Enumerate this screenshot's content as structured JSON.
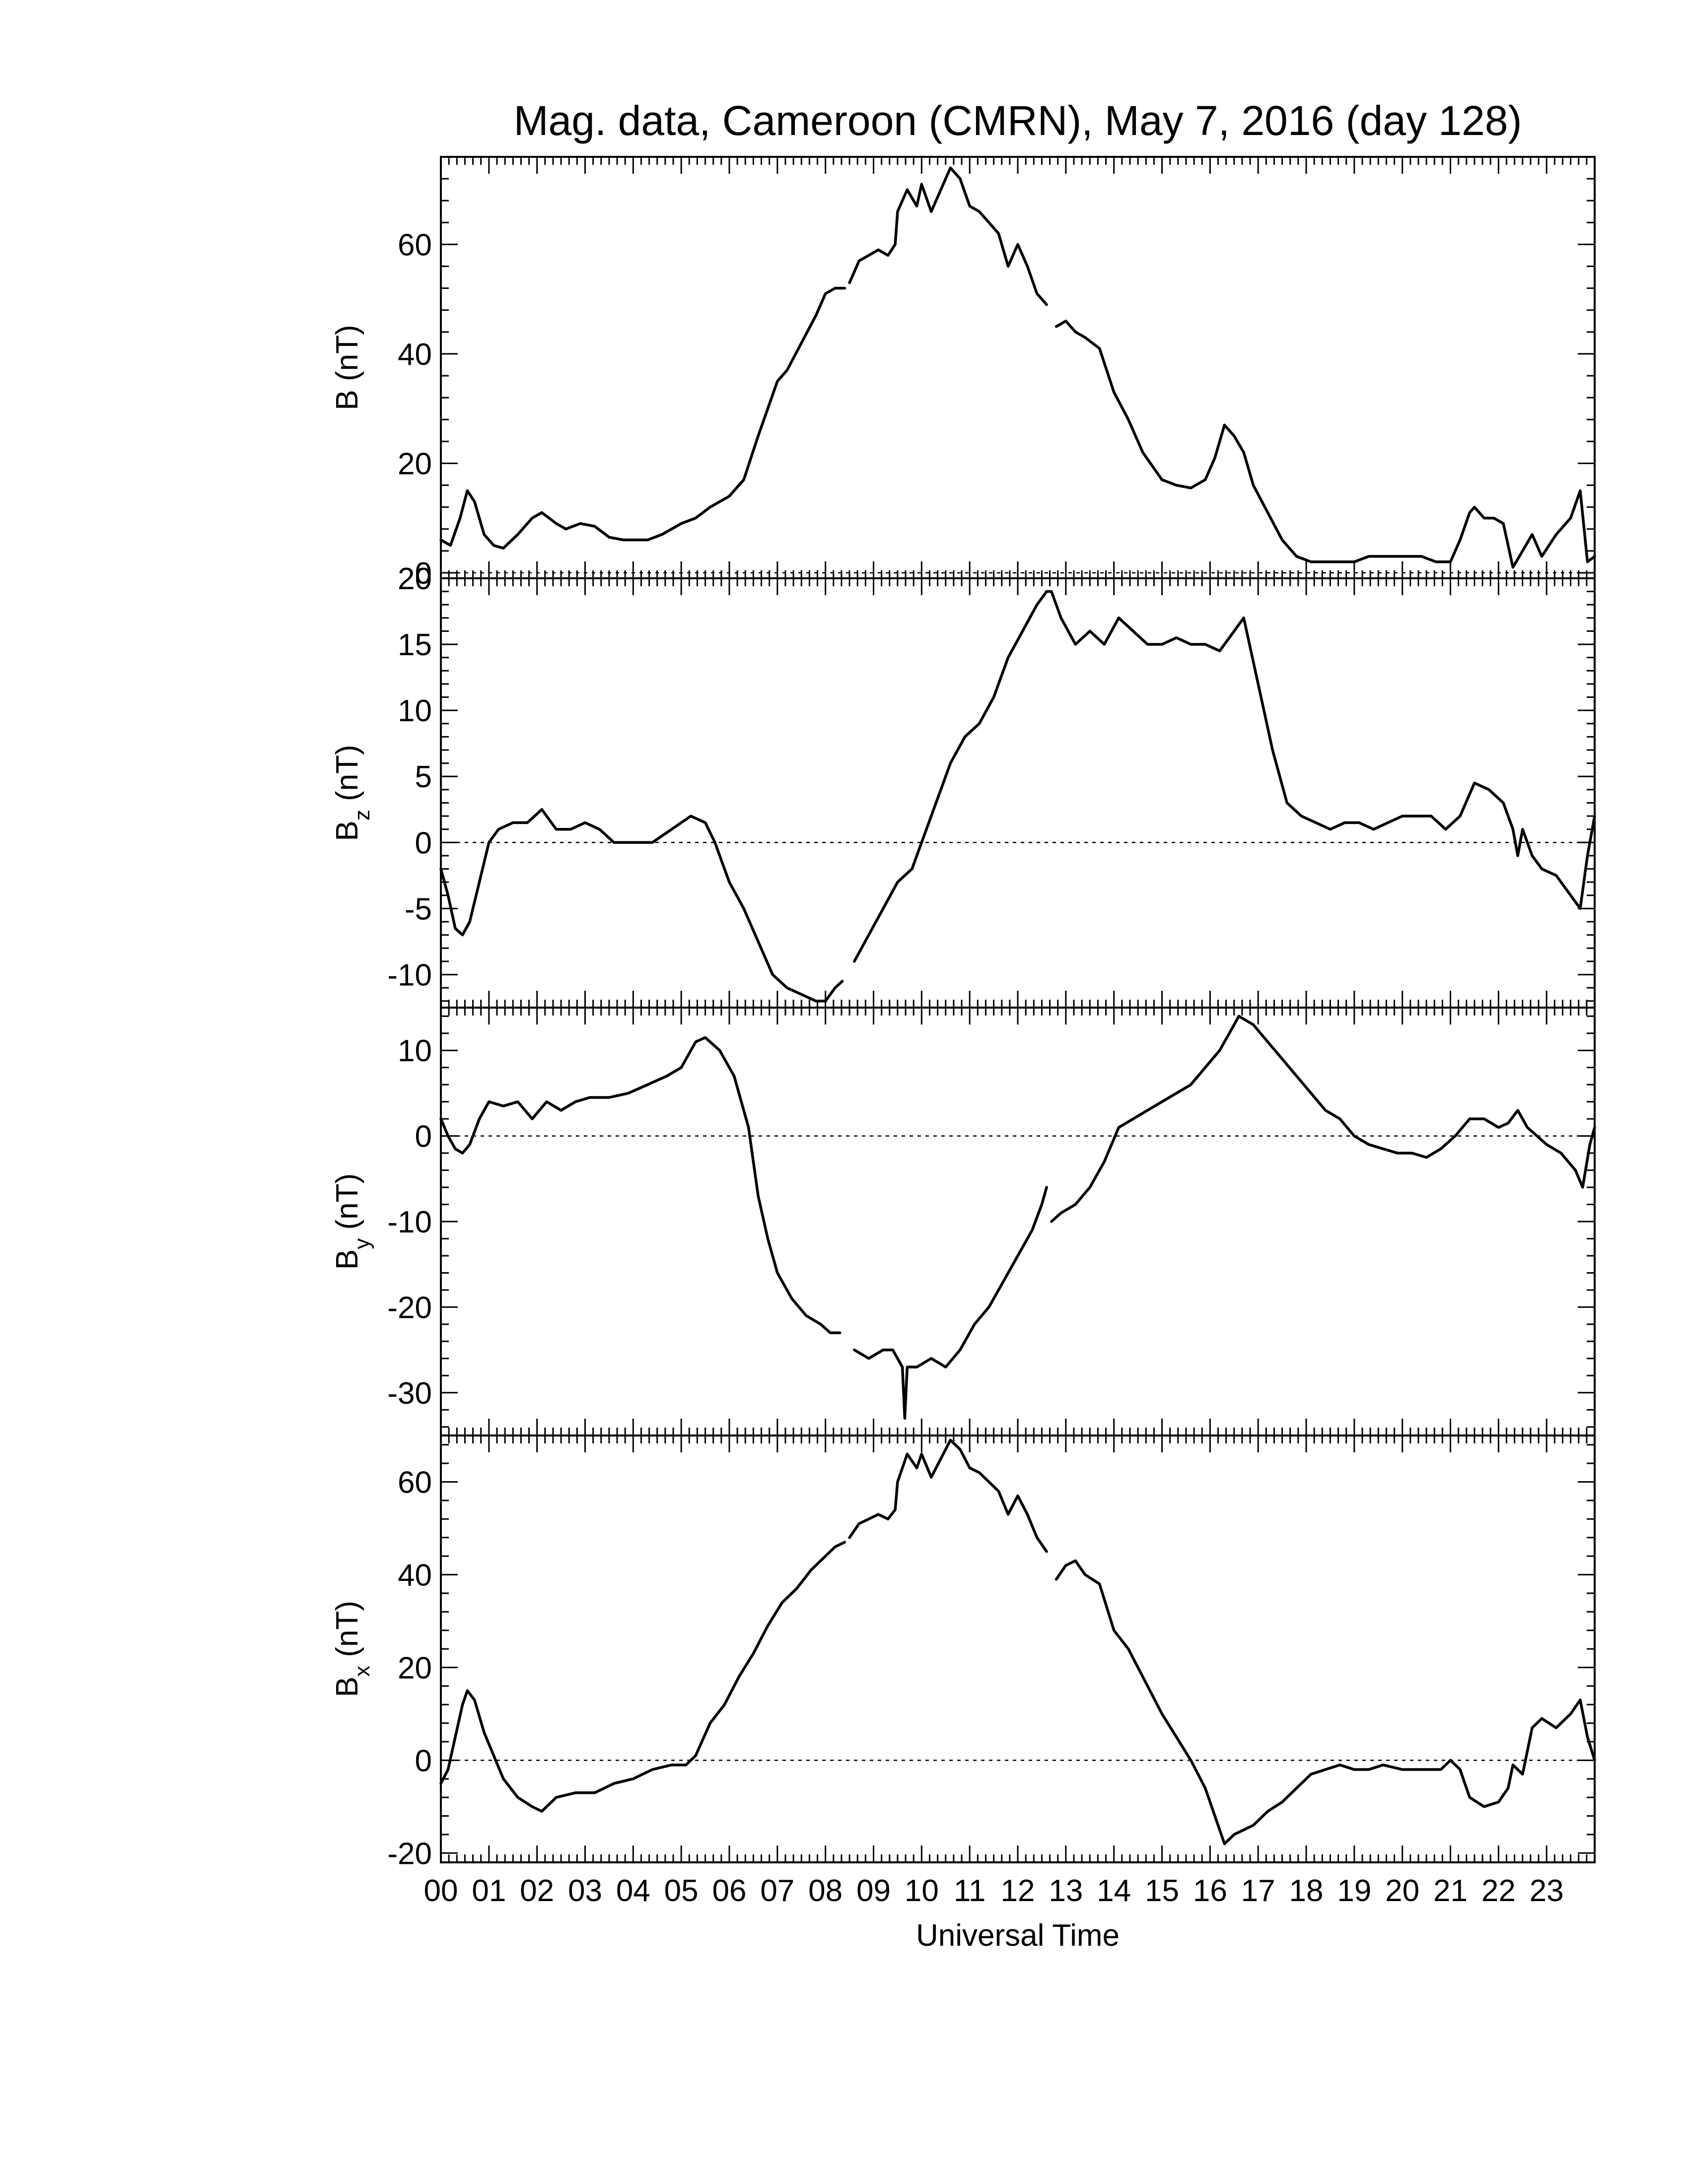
{
  "figure": {
    "title": "Mag. data, Cameroon (CMRN), May 7, 2016 (day 128)",
    "xlabel": "Universal Time"
  },
  "chart_data": [
    {
      "type": "line",
      "ylabel": {
        "main": "B",
        "sub": "",
        "unit": " (nT)"
      },
      "ylim": [
        -1,
        76
      ],
      "yticks": [
        0,
        20,
        40,
        60
      ],
      "xlim": [
        0,
        24
      ],
      "xticks": [
        "00",
        "01",
        "02",
        "03",
        "04",
        "05",
        "06",
        "07",
        "08",
        "09",
        "10",
        "11",
        "12",
        "13",
        "14",
        "15",
        "16",
        "17",
        "18",
        "19",
        "20",
        "21",
        "22",
        "23"
      ],
      "zero_line": true,
      "series": [
        {
          "x": [
            0,
            0.2,
            0.4,
            0.55,
            0.7,
            0.9,
            1.1,
            1.3,
            1.6,
            1.9,
            2.1,
            2.4,
            2.6,
            2.9,
            3.2,
            3.5,
            3.8,
            4,
            4.3,
            4.6,
            5,
            5.3,
            5.6,
            6,
            6.3,
            6.6,
            6.8,
            7,
            7.2,
            7.5,
            7.8,
            8,
            8.2,
            8.4
          ],
          "y": [
            6,
            5,
            10,
            15,
            13,
            7,
            5,
            4.5,
            7,
            10,
            11,
            9,
            8,
            9,
            8.5,
            6.5,
            6,
            6,
            6,
            7,
            9,
            10,
            12,
            14,
            17,
            25,
            30,
            35,
            37,
            42,
            47,
            51,
            52,
            52
          ]
        },
        {
          "x": [
            8.5,
            8.7,
            8.9,
            9.1,
            9.3,
            9.45,
            9.5,
            9.7,
            9.9,
            10,
            10.2,
            10.4,
            10.6,
            10.8,
            11,
            11.2,
            11.4,
            11.6,
            11.8,
            12,
            12.2,
            12.4,
            12.6
          ],
          "y": [
            53,
            57,
            58,
            59,
            58,
            60,
            66,
            70,
            67,
            71,
            66,
            70,
            74,
            72,
            67,
            66,
            64,
            62,
            56,
            60,
            56,
            51,
            49
          ]
        },
        {
          "x": [
            12.8,
            13,
            13.2,
            13.4,
            13.7,
            14,
            14.3,
            14.6,
            15,
            15.3,
            15.6,
            15.9,
            16.1,
            16.3,
            16.5,
            16.7,
            16.9,
            17.2,
            17.5,
            17.8,
            18.1,
            18.4,
            18.7,
            19,
            19.3,
            19.6,
            20,
            20.4,
            20.7,
            21,
            21.2,
            21.4,
            21.5,
            21.7,
            21.9,
            22.1,
            22.3,
            22.5,
            22.7,
            22.9,
            23.2,
            23.5,
            23.7,
            23.85,
            24
          ],
          "y": [
            45,
            46,
            44,
            43,
            41,
            33,
            28,
            22,
            17,
            16,
            15.5,
            17,
            21,
            27,
            25,
            22,
            16,
            11,
            6,
            3,
            2,
            2,
            2,
            2,
            3,
            3,
            3,
            3,
            2,
            2,
            6,
            11,
            12,
            10,
            10,
            9,
            1,
            4,
            7,
            3,
            7,
            10,
            15,
            2,
            3
          ]
        }
      ]
    },
    {
      "type": "line",
      "ylabel": {
        "main": "B",
        "sub": "z",
        "unit": " (nT)"
      },
      "ylim": [
        -12.5,
        20
      ],
      "yticks": [
        -10,
        -5,
        0,
        5,
        10,
        15,
        20
      ],
      "xlim": [
        0,
        24
      ],
      "xticks": [
        "00",
        "01",
        "02",
        "03",
        "04",
        "05",
        "06",
        "07",
        "08",
        "09",
        "10",
        "11",
        "12",
        "13",
        "14",
        "15",
        "16",
        "17",
        "18",
        "19",
        "20",
        "21",
        "22",
        "23"
      ],
      "zero_line": true,
      "series": [
        {
          "x": [
            0,
            0.15,
            0.3,
            0.45,
            0.6,
            0.8,
            1,
            1.2,
            1.5,
            1.8,
            2.1,
            2.4,
            2.7,
            3,
            3.3,
            3.6,
            4,
            4.4,
            4.8,
            5.2,
            5.5,
            5.7,
            6,
            6.3,
            6.6,
            6.9,
            7.2,
            7.5,
            7.8,
            8,
            8.2,
            8.35
          ],
          "y": [
            -2,
            -4,
            -6.5,
            -7,
            -6,
            -3,
            0,
            1,
            1.5,
            1.5,
            2.5,
            1,
            1,
            1.5,
            1,
            0,
            0,
            0,
            1,
            2,
            1.5,
            0,
            -3,
            -5,
            -7.5,
            -10,
            -11,
            -11.5,
            -12,
            -12,
            -11,
            -10.5
          ]
        },
        {
          "x": [
            8.6,
            8.9,
            9.2,
            9.5,
            9.8,
            10,
            10.2,
            10.4,
            10.6,
            10.9,
            11.2,
            11.5,
            11.8,
            12.1,
            12.4,
            12.6,
            12.7,
            12.9,
            13.2,
            13.5,
            13.8,
            14.1,
            14.4,
            14.7,
            15,
            15.3,
            15.6,
            15.9,
            16.2,
            16.5,
            16.7,
            17,
            17.3,
            17.6,
            17.9,
            18.2,
            18.5,
            18.8,
            19.1,
            19.4,
            19.7,
            20,
            20.3,
            20.6,
            20.9,
            21.2,
            21.5,
            21.8,
            22.1,
            22.3,
            22.4,
            22.5,
            22.7,
            22.9,
            23.2,
            23.5,
            23.7,
            23.85,
            24
          ],
          "y": [
            -9,
            -7,
            -5,
            -3,
            -2,
            0,
            2,
            4,
            6,
            8,
            9,
            11,
            14,
            16,
            18,
            19,
            19,
            17,
            15,
            16,
            15,
            17,
            16,
            15,
            15,
            15.5,
            15,
            15,
            14.5,
            16,
            17,
            12,
            7,
            3,
            2,
            1.5,
            1,
            1.5,
            1.5,
            1,
            1.5,
            2,
            2,
            2,
            1,
            2,
            4.5,
            4,
            3,
            1,
            -1,
            1,
            -1,
            -2,
            -2.5,
            -4,
            -5,
            -1,
            2
          ]
        }
      ]
    },
    {
      "type": "line",
      "ylabel": {
        "main": "B",
        "sub": "y",
        "unit": " (nT)"
      },
      "ylim": [
        -35,
        15
      ],
      "yticks": [
        -30,
        -20,
        -10,
        0,
        10
      ],
      "xlim": [
        0,
        24
      ],
      "xticks": [
        "00",
        "01",
        "02",
        "03",
        "04",
        "05",
        "06",
        "07",
        "08",
        "09",
        "10",
        "11",
        "12",
        "13",
        "14",
        "15",
        "16",
        "17",
        "18",
        "19",
        "20",
        "21",
        "22",
        "23"
      ],
      "zero_line": true,
      "series": [
        {
          "x": [
            0,
            0.15,
            0.3,
            0.45,
            0.6,
            0.8,
            1,
            1.3,
            1.6,
            1.9,
            2.2,
            2.5,
            2.8,
            3.1,
            3.5,
            3.9,
            4.3,
            4.7,
            5,
            5.3,
            5.5,
            5.8,
            6.1,
            6.4,
            6.6,
            6.8,
            7,
            7.3,
            7.6,
            7.9,
            8.1,
            8.3
          ],
          "y": [
            2,
            0,
            -1.5,
            -2,
            -1,
            2,
            4,
            3.5,
            4,
            2,
            4,
            3,
            4,
            4.5,
            4.5,
            5,
            6,
            7,
            8,
            11,
            11.5,
            10,
            7,
            1,
            -7,
            -12,
            -16,
            -19,
            -21,
            -22,
            -23,
            -23
          ]
        },
        {
          "x": [
            8.6,
            8.9,
            9.2,
            9.4,
            9.6,
            9.65,
            9.7,
            9.9,
            10.2,
            10.5,
            10.8,
            11.1,
            11.4,
            11.7,
            12,
            12.3,
            12.5,
            12.6
          ],
          "y": [
            -25,
            -26,
            -25,
            -25,
            -27,
            -33,
            -27,
            -27,
            -26,
            -27,
            -25,
            -22,
            -20,
            -17,
            -14,
            -11,
            -8,
            -6
          ]
        },
        {
          "x": [
            12.7,
            12.9,
            13.2,
            13.5,
            13.8,
            14.1,
            14.4,
            14.7,
            15,
            15.3,
            15.6,
            15.9,
            16.2,
            16.5,
            16.6,
            16.9,
            17.2,
            17.5,
            17.8,
            18.1,
            18.4,
            18.7,
            19,
            19.3,
            19.6,
            19.9,
            20.2,
            20.5,
            20.8,
            21.1,
            21.4,
            21.7,
            22,
            22.2,
            22.4,
            22.6,
            22.8,
            23,
            23.3,
            23.6,
            23.75,
            23.9,
            24
          ],
          "y": [
            -10,
            -9,
            -8,
            -6,
            -3,
            1,
            2,
            3,
            4,
            5,
            6,
            8,
            10,
            13,
            14,
            13,
            11,
            9,
            7,
            5,
            3,
            2,
            0,
            -1,
            -1.5,
            -2,
            -2,
            -2.5,
            -1.5,
            0,
            2,
            2,
            1,
            1.5,
            3,
            1,
            0,
            -1,
            -2,
            -4,
            -6,
            -1,
            1
          ]
        }
      ]
    },
    {
      "type": "line",
      "ylabel": {
        "main": "B",
        "sub": "x",
        "unit": " (nT)"
      },
      "ylim": [
        -22,
        70
      ],
      "yticks": [
        -20,
        0,
        20,
        40,
        60
      ],
      "xlim": [
        0,
        24
      ],
      "xticks": [
        "00",
        "01",
        "02",
        "03",
        "04",
        "05",
        "06",
        "07",
        "08",
        "09",
        "10",
        "11",
        "12",
        "13",
        "14",
        "15",
        "16",
        "17",
        "18",
        "19",
        "20",
        "21",
        "22",
        "23"
      ],
      "zero_line": true,
      "series": [
        {
          "x": [
            0,
            0.15,
            0.3,
            0.45,
            0.55,
            0.7,
            0.9,
            1.1,
            1.3,
            1.6,
            1.9,
            2.1,
            2.4,
            2.8,
            3.2,
            3.6,
            4,
            4.4,
            4.8,
            5.1,
            5.3,
            5.6,
            5.9,
            6.2,
            6.5,
            6.8,
            7.1,
            7.4,
            7.7,
            8,
            8.2,
            8.4
          ],
          "y": [
            -5,
            -2,
            5,
            12,
            15,
            13,
            6,
            1,
            -4,
            -8,
            -10,
            -11,
            -8,
            -7,
            -7,
            -5,
            -4,
            -2,
            -1,
            -1,
            1,
            8,
            12,
            18,
            23,
            29,
            34,
            37,
            41,
            44,
            46,
            47
          ]
        },
        {
          "x": [
            8.5,
            8.7,
            8.9,
            9.1,
            9.3,
            9.45,
            9.5,
            9.7,
            9.9,
            10,
            10.2,
            10.4,
            10.6,
            10.8,
            11,
            11.2,
            11.4,
            11.6,
            11.8,
            12,
            12.2,
            12.4,
            12.6
          ],
          "y": [
            48,
            51,
            52,
            53,
            52,
            54,
            60,
            66,
            63,
            66,
            61,
            65,
            69,
            67,
            63,
            62,
            60,
            58,
            53,
            57,
            53,
            48,
            45
          ]
        },
        {
          "x": [
            12.8,
            13,
            13.2,
            13.4,
            13.7,
            14,
            14.3,
            14.6,
            15,
            15.3,
            15.6,
            15.9,
            16.1,
            16.3,
            16.5,
            16.7,
            16.9,
            17.2,
            17.5,
            17.8,
            18.1,
            18.4,
            18.7,
            19,
            19.3,
            19.6,
            20,
            20.4,
            20.8,
            21,
            21.2,
            21.4,
            21.7,
            22,
            22.2,
            22.3,
            22.5,
            22.7,
            22.9,
            23.2,
            23.5,
            23.7,
            23.85,
            24
          ],
          "y": [
            39,
            42,
            43,
            40,
            38,
            28,
            24,
            18,
            10,
            5,
            0,
            -6,
            -12,
            -18,
            -16,
            -15,
            -14,
            -11,
            -9,
            -6,
            -3,
            -2,
            -1,
            -2,
            -2,
            -1,
            -2,
            -2,
            -2,
            0,
            -2,
            -8,
            -10,
            -9,
            -6,
            -1,
            -3,
            7,
            9,
            7,
            10,
            13,
            5,
            0
          ]
        }
      ]
    }
  ]
}
